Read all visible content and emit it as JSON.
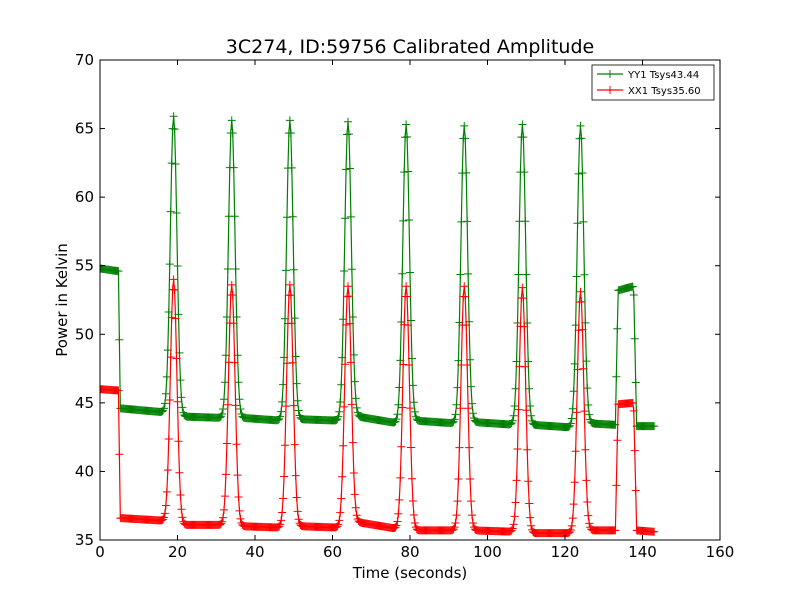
{
  "chart_data": {
    "type": "line",
    "title": "3C274, ID:59756 Calibrated Amplitude",
    "xlabel": "Time (seconds)",
    "ylabel": "Power in Kelvin",
    "xlim": [
      0,
      160
    ],
    "ylim": [
      35,
      70
    ],
    "xticks": [
      0,
      20,
      40,
      60,
      80,
      100,
      120,
      140,
      160
    ],
    "yticks": [
      35,
      40,
      45,
      50,
      55,
      60,
      65,
      70
    ],
    "grid": false,
    "legend_position": "top-right",
    "marker": "plus",
    "series": [
      {
        "name": "YY1 Tsys43.44",
        "color": "#008000",
        "baseline": [
          [
            0,
            54.8
          ],
          [
            4.8,
            54.6
          ],
          [
            5.2,
            44.6
          ],
          [
            17,
            44.3
          ],
          [
            21.5,
            44.0
          ],
          [
            32,
            43.9
          ],
          [
            37,
            43.9
          ],
          [
            47,
            43.7
          ],
          [
            52,
            43.8
          ],
          [
            62,
            43.7
          ],
          [
            66.5,
            44.0
          ],
          [
            77,
            43.5
          ],
          [
            81.5,
            43.7
          ],
          [
            92,
            43.5
          ],
          [
            96.5,
            43.6
          ],
          [
            107,
            43.4
          ],
          [
            111.5,
            43.4
          ],
          [
            122,
            43.2
          ],
          [
            126.5,
            43.5
          ],
          [
            133,
            43.4
          ],
          [
            133.7,
            53.2
          ],
          [
            137.7,
            53.5
          ],
          [
            138.5,
            43.3
          ],
          [
            143,
            43.3
          ]
        ],
        "peaks": [
          {
            "center": 19.0,
            "height": 65.9
          },
          {
            "center": 34.0,
            "height": 65.6
          },
          {
            "center": 49.0,
            "height": 65.6
          },
          {
            "center": 64.0,
            "height": 65.5
          },
          {
            "center": 79.0,
            "height": 65.3
          },
          {
            "center": 94.0,
            "height": 65.2
          },
          {
            "center": 109.0,
            "height": 65.3
          },
          {
            "center": 124.0,
            "height": 65.2
          }
        ]
      },
      {
        "name": "XX1 Tsys35.60",
        "color": "#ff0000",
        "baseline": [
          [
            0,
            46.0
          ],
          [
            4.8,
            45.9
          ],
          [
            5.2,
            36.6
          ],
          [
            17,
            36.4
          ],
          [
            21.5,
            36.1
          ],
          [
            32,
            36.1
          ],
          [
            37,
            36.0
          ],
          [
            47,
            35.9
          ],
          [
            52,
            36.0
          ],
          [
            62,
            35.9
          ],
          [
            66.5,
            36.3
          ],
          [
            77,
            35.8
          ],
          [
            81.5,
            35.7
          ],
          [
            92,
            35.7
          ],
          [
            96.5,
            35.7
          ],
          [
            107,
            35.6
          ],
          [
            111.5,
            35.5
          ],
          [
            122,
            35.5
          ],
          [
            126.5,
            35.7
          ],
          [
            133,
            35.7
          ],
          [
            133.7,
            44.9
          ],
          [
            137.7,
            45.0
          ],
          [
            138.5,
            35.7
          ],
          [
            143,
            35.6
          ]
        ],
        "peaks": [
          {
            "center": 19.0,
            "height": 54.0
          },
          {
            "center": 34.0,
            "height": 53.6
          },
          {
            "center": 49.0,
            "height": 53.6
          },
          {
            "center": 64.0,
            "height": 53.5
          },
          {
            "center": 79.0,
            "height": 53.5
          },
          {
            "center": 94.0,
            "height": 53.5
          },
          {
            "center": 109.0,
            "height": 53.4
          },
          {
            "center": 124.0,
            "height": 53.1
          }
        ]
      }
    ]
  }
}
